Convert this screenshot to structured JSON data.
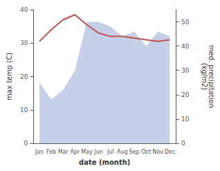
{
  "chart_data": {
    "type": "line",
    "categories": [
      "Jan",
      "Feb",
      "Mar",
      "Apr",
      "May",
      "Jun",
      "Jul",
      "Aug",
      "Sep",
      "Oct",
      "Nov",
      "Dec"
    ],
    "xlabel": "date (month)",
    "ylabel": "max temp (C)",
    "y2label": "med. precipitation\n(kg/m2)",
    "ylim": [
      0,
      40
    ],
    "yticks": [
      0,
      10,
      20,
      30,
      40
    ],
    "y2lim": [
      0,
      55
    ],
    "y2ticks": [
      0,
      10,
      20,
      30,
      40,
      50
    ],
    "grid": false,
    "series": [
      {
        "type": "area",
        "color": "#c5cfe8",
        "axis": "y2",
        "values": [
          25,
          18,
          22,
          30,
          50,
          50,
          48,
          44,
          46,
          40,
          46,
          44
        ]
      },
      {
        "type": "line",
        "color": "#c0504d",
        "values": [
          30.5,
          34.0,
          37.0,
          38.5,
          35.5,
          33.0,
          32.0,
          32.0,
          31.5,
          31.0,
          30.5,
          31.0
        ]
      }
    ]
  }
}
